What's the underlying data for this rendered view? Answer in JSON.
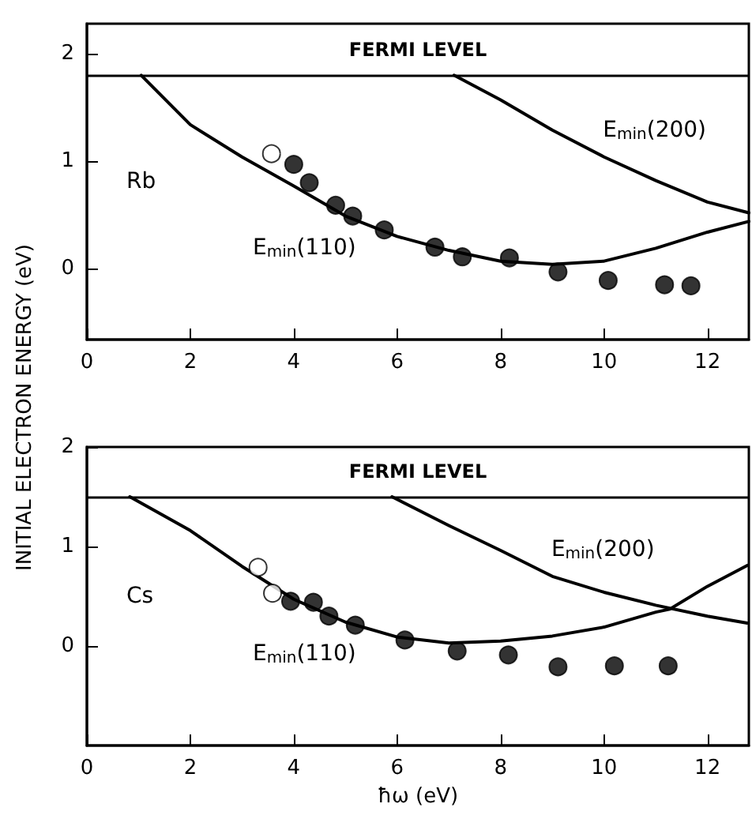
{
  "chart_data": [
    {
      "type": "scatter",
      "ylabel": "INITIAL ELECTRON ENERGY (eV)",
      "xlim": [
        0,
        12.8
      ],
      "ylim": [
        -0.66,
        2.28
      ],
      "xticks": [
        0,
        2,
        4,
        6,
        8,
        10,
        12
      ],
      "yticks": [
        0,
        1,
        2
      ],
      "grid": false,
      "series": [
        {
          "type": "line",
          "name": "E$_{min}$(110)",
          "marker": "none",
          "color": "#000000",
          "x": [
            1.05,
            2,
            3,
            4,
            5,
            6,
            7,
            8,
            9,
            10,
            11,
            12,
            12.8
          ],
          "values": [
            1.8,
            1.34,
            1.04,
            0.77,
            0.49,
            0.3,
            0.17,
            0.07,
            0.04,
            0.07,
            0.19,
            0.34,
            0.44
          ]
        },
        {
          "type": "line",
          "name": "E$_{min}$(200)",
          "marker": "none",
          "color": "#000000",
          "x": [
            7.1,
            8,
            9,
            10,
            11,
            12,
            12.8
          ],
          "values": [
            1.8,
            1.57,
            1.29,
            1.04,
            0.82,
            0.62,
            0.52
          ]
        },
        {
          "marker": "circle",
          "color": "#ffffff",
          "x": [
            3.57
          ],
          "values": [
            1.07
          ]
        },
        {
          "marker": "circle",
          "color": "#000000",
          "x": [
            4.0,
            4.3,
            4.81,
            5.14,
            5.75,
            6.73,
            7.26,
            8.17,
            9.11,
            10.08,
            11.17,
            11.68
          ],
          "values": [
            0.97,
            0.8,
            0.59,
            0.49,
            0.36,
            0.2,
            0.11,
            0.1,
            -0.03,
            -0.11,
            -0.15,
            -0.16
          ]
        }
      ],
      "ref_lines": [
        {
          "axis": "y",
          "value": 1.8,
          "label": "FERMI LEVEL"
        }
      ],
      "annotations": [
        "Rb"
      ]
    },
    {
      "type": "scatter",
      "xlabel": "ħω (eV)",
      "xlim": [
        0,
        12.8
      ],
      "ylim": [
        -1,
        2
      ],
      "xticks": [
        0,
        2,
        4,
        6,
        8,
        10,
        12
      ],
      "yticks": [
        0,
        1,
        2
      ],
      "grid": false,
      "series": [
        {
          "type": "line",
          "name": "E$_{min}$(110)",
          "marker": "none",
          "color": "#000000",
          "x": [
            0.83,
            2,
            3,
            4,
            5,
            6,
            7,
            8,
            9,
            10,
            11,
            11.27,
            12,
            12.77
          ],
          "values": [
            1.5,
            1.16,
            0.8,
            0.47,
            0.24,
            0.09,
            0.03,
            0.05,
            0.1,
            0.19,
            0.34,
            0.37,
            0.6,
            0.81
          ]
        },
        {
          "type": "line",
          "name": "E$_{min}$(200)",
          "marker": "none",
          "color": "#000000",
          "x": [
            5.9,
            7,
            8,
            9,
            10,
            11,
            12,
            12.77
          ],
          "values": [
            1.5,
            1.21,
            0.96,
            0.7,
            0.54,
            0.41,
            0.3,
            0.23
          ]
        },
        {
          "marker": "circle",
          "color": "#ffffff",
          "x": [
            3.31,
            3.59
          ],
          "values": [
            0.79,
            0.53
          ]
        },
        {
          "marker": "circle",
          "color": "#000000",
          "x": [
            3.94,
            4.38,
            4.68,
            5.19,
            6.15,
            7.16,
            8.15,
            9.11,
            10.2,
            11.24
          ],
          "values": [
            0.45,
            0.44,
            0.3,
            0.21,
            0.06,
            -0.05,
            -0.09,
            -0.21,
            -0.2,
            -0.2
          ]
        }
      ],
      "ref_lines": [
        {
          "axis": "y",
          "value": 1.5,
          "label": "FERMI LEVEL"
        }
      ],
      "annotations": [
        "Cs"
      ]
    }
  ]
}
